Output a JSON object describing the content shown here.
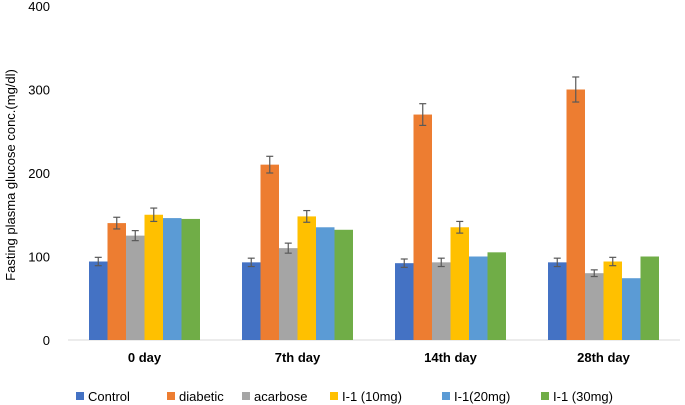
{
  "chart_data": {
    "type": "bar",
    "title": "",
    "xlabel": "",
    "ylabel": "Fasting plasma glucose conc.(mg/dl)",
    "ylim": [
      0,
      400
    ],
    "yticks": [
      0,
      100,
      200,
      300,
      400
    ],
    "grid": false,
    "legend_position": "bottom",
    "categories": [
      "0 day",
      "7th day",
      "14th day",
      "28th day"
    ],
    "series": [
      {
        "name": "Control",
        "color": "#4472C4",
        "values": [
          94,
          93,
          92,
          93
        ],
        "errors": [
          5,
          5,
          5,
          5
        ]
      },
      {
        "name": "diabetic",
        "color": "#ED7D31",
        "values": [
          140,
          210,
          270,
          300
        ],
        "errors": [
          7,
          10,
          13,
          15
        ]
      },
      {
        "name": "acarbose",
        "color": "#A5A5A5",
        "values": [
          125,
          110,
          93,
          80
        ],
        "errors": [
          6,
          6,
          5,
          4
        ]
      },
      {
        "name": "I-1 (10mg)",
        "color": "#FFC000",
        "values": [
          150,
          148,
          135,
          94
        ],
        "errors": [
          8,
          7,
          7,
          5
        ]
      },
      {
        "name": "I-1(20mg)",
        "color": "#5B9BD5",
        "values": [
          146,
          135,
          100,
          74
        ],
        "errors": [
          0,
          0,
          0,
          0
        ]
      },
      {
        "name": "I-1 (30mg)",
        "color": "#70AD47",
        "values": [
          145,
          132,
          105,
          100
        ],
        "errors": [
          0,
          0,
          0,
          0
        ]
      }
    ]
  }
}
